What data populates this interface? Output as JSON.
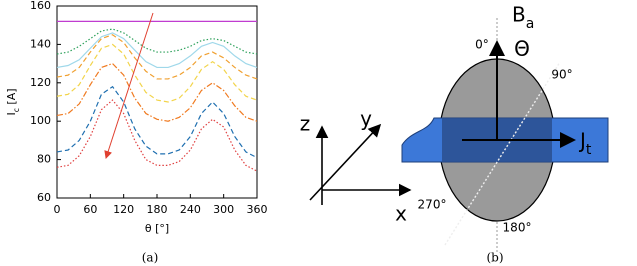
{
  "chart_data": {
    "type": "line",
    "xlabel": "θ [°]",
    "ylabel": "I_c [A]",
    "caption": "(a)",
    "x": [
      0,
      20,
      40,
      60,
      80,
      100,
      120,
      140,
      160,
      180,
      200,
      220,
      240,
      260,
      280,
      300,
      320,
      340,
      360
    ],
    "xlim": [
      0,
      360
    ],
    "xticks": [
      0,
      60,
      120,
      180,
      240,
      300,
      360
    ],
    "ylim": [
      60,
      160
    ],
    "yticks": [
      60,
      80,
      100,
      120,
      140,
      160
    ],
    "series": [
      {
        "color": "#c03cd0",
        "dash": "solid",
        "values": [
          152,
          152,
          152,
          152,
          152,
          152,
          152,
          152,
          152,
          152,
          152,
          152,
          152,
          152,
          152,
          152,
          152,
          152,
          152
        ]
      },
      {
        "color": "#2ca05a",
        "dash": "dotted",
        "values": [
          135,
          136,
          139,
          143,
          147,
          148,
          146,
          142,
          138,
          136,
          136,
          137,
          139,
          142,
          143,
          142,
          139,
          136,
          135
        ]
      },
      {
        "color": "#9fd8ea",
        "dash": "solid",
        "values": [
          128,
          129,
          132,
          138,
          144,
          146,
          143,
          137,
          131,
          128,
          128,
          130,
          134,
          139,
          141,
          139,
          134,
          130,
          128
        ]
      },
      {
        "color": "#f0a030",
        "dash": "dashed",
        "values": [
          123,
          124,
          128,
          136,
          143,
          145,
          141,
          133,
          126,
          122,
          122,
          124,
          128,
          134,
          136,
          133,
          128,
          124,
          122
        ]
      },
      {
        "color": "#f2d44a",
        "dash": "dashed",
        "values": [
          113,
          114,
          119,
          129,
          138,
          140,
          135,
          124,
          115,
          111,
          110,
          112,
          118,
          127,
          131,
          127,
          119,
          113,
          111
        ]
      },
      {
        "color": "#f07a20",
        "dash": "dashdot",
        "values": [
          103,
          104,
          109,
          119,
          128,
          130,
          124,
          112,
          104,
          101,
          100,
          102,
          107,
          116,
          120,
          116,
          108,
          102,
          100
        ]
      },
      {
        "color": "#1f6fb0",
        "dash": "dashed",
        "values": [
          84,
          85,
          90,
          100,
          114,
          118,
          110,
          96,
          87,
          83,
          83,
          85,
          92,
          104,
          110,
          104,
          92,
          84,
          81
        ]
      },
      {
        "color": "#e04040",
        "dash": "dotted",
        "values": [
          76,
          77,
          82,
          92,
          106,
          111,
          104,
          90,
          80,
          77,
          77,
          79,
          85,
          96,
          101,
          97,
          85,
          77,
          74
        ]
      }
    ]
  },
  "diagram": {
    "field": "B_a",
    "angle_0": "0°",
    "theta": "Θ",
    "angle_90": "90°",
    "angle_180": "180°",
    "angle_270": "270°",
    "current": "J_t",
    "axis_x": "x",
    "axis_y": "y",
    "axis_z": "z",
    "caption": "(b)"
  }
}
